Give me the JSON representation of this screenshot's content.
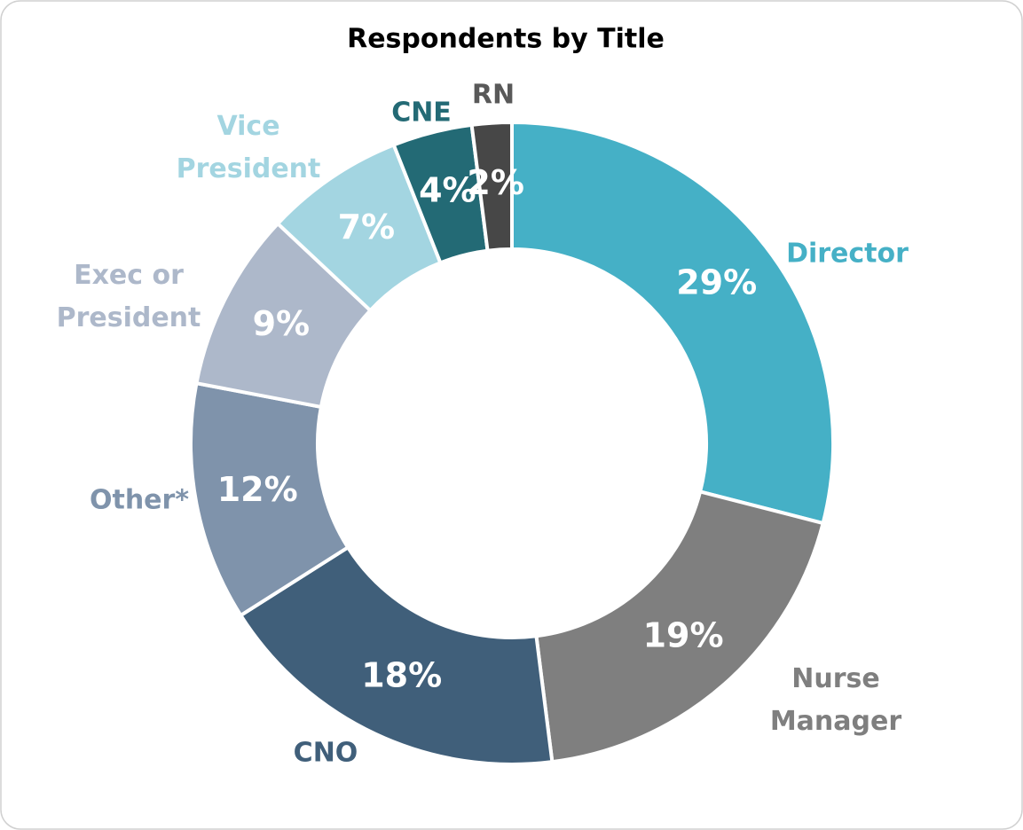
{
  "chart_data": {
    "type": "donut",
    "title": "Respondents by Title",
    "categories": [
      "Director",
      "Nurse Manager",
      "CNO",
      "Other*",
      "Exec or President",
      "Vice President",
      "CNE",
      "RN"
    ],
    "values": [
      29,
      19,
      18,
      12,
      9,
      7,
      4,
      2
    ],
    "value_labels": [
      "29%",
      "19%",
      "18%",
      "12%",
      "9%",
      "7%",
      "4%",
      "2%"
    ],
    "colors": [
      "#45b0c6",
      "#7f7f7f",
      "#405f7a",
      "#7f93ab",
      "#adb8ca",
      "#a3d5e1",
      "#236a75",
      "#474747"
    ]
  }
}
